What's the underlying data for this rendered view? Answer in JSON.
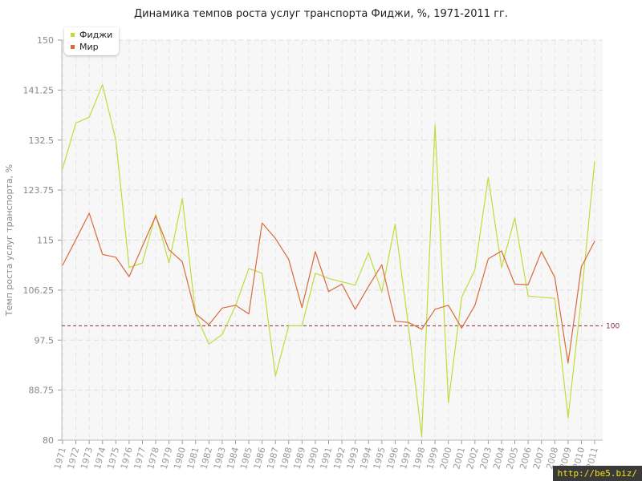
{
  "chart_data": {
    "type": "line",
    "title": "Динамика темпов роста услуг транспорта Фиджи, %, 1971-2011 гг.",
    "ylabel": "Темп роста услуг транспорта, %",
    "xlabel": "",
    "ylim": [
      80,
      150
    ],
    "yticks": [
      "80",
      "88.75",
      "97.5",
      "106.25",
      "115",
      "123.75",
      "132.5",
      "141.25",
      "150"
    ],
    "categories": [
      "1971",
      "1972",
      "1973",
      "1974",
      "1975",
      "1976",
      "1977",
      "1978",
      "1979",
      "1980",
      "1981",
      "1982",
      "1983",
      "1984",
      "1985",
      "1986",
      "1987",
      "1988",
      "1989",
      "1990",
      "1991",
      "1992",
      "1993",
      "1994",
      "1995",
      "1996",
      "1997",
      "1998",
      "1999",
      "2000",
      "2001",
      "2002",
      "2003",
      "2004",
      "2005",
      "2006",
      "2007",
      "2008",
      "2009",
      "2010",
      "2011"
    ],
    "series": [
      {
        "name": "Фиджи",
        "color": "#bedd3b",
        "values": [
          127.5,
          135.5,
          136.5,
          142.2,
          132.5,
          110.2,
          111.0,
          119.5,
          111.0,
          122.3,
          102.0,
          96.8,
          98.5,
          103.5,
          110.0,
          109.2,
          91.2,
          100.0,
          100.0,
          109.2,
          108.3,
          107.7,
          107.1,
          112.8,
          105.9,
          117.8,
          100.0,
          80.6,
          135.2,
          86.6,
          105.0,
          109.8,
          126.0,
          110.2,
          118.9,
          105.2,
          105.0,
          104.8,
          83.9,
          104.8,
          128.8
        ]
      },
      {
        "name": "Мир",
        "color": "#d96a3a",
        "values": [
          110.6,
          115.1,
          119.7,
          112.5,
          112.0,
          108.6,
          113.9,
          119.2,
          113.3,
          111.2,
          102.1,
          100.2,
          103.1,
          103.6,
          102.1,
          118.0,
          115.3,
          111.6,
          103.2,
          113.0,
          106.0,
          107.3,
          102.9,
          106.9,
          110.7,
          100.8,
          100.6,
          99.4,
          102.9,
          103.6,
          99.6,
          103.6,
          111.7,
          113.1,
          107.3,
          107.2,
          113.0,
          108.5,
          93.5,
          110.3,
          114.8
        ]
      }
    ],
    "reference_line": {
      "value": 100,
      "label": "100",
      "color": "#8b2b3b"
    },
    "grid": true,
    "legend": "top-left"
  },
  "watermark": "http://be5.biz/"
}
